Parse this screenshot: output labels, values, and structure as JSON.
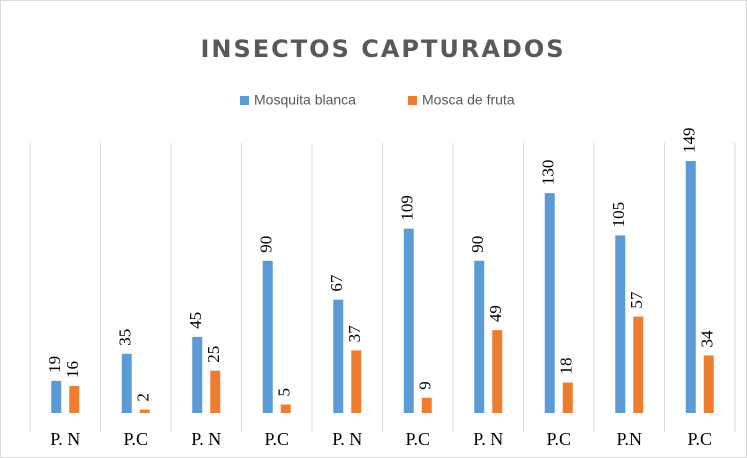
{
  "chart_data": {
    "type": "bar",
    "title": "INSECTOS  CAPTURADOS",
    "categories": [
      "P. N",
      "P.C",
      "P. N",
      "P.C",
      "P. N",
      "P.C",
      "P. N",
      "P.C",
      "P.N",
      "P.C"
    ],
    "series": [
      {
        "name": "Mosquita blanca",
        "color": "#5b9bd5",
        "values": [
          19,
          35,
          45,
          90,
          67,
          109,
          90,
          130,
          105,
          149
        ]
      },
      {
        "name": "Mosca de fruta",
        "color": "#ed7d31",
        "values": [
          16,
          2,
          25,
          5,
          37,
          9,
          49,
          18,
          57,
          34
        ]
      }
    ],
    "grid": true,
    "legend": "top"
  }
}
